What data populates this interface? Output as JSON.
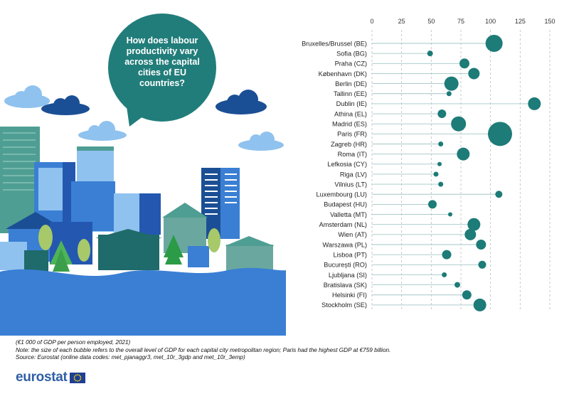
{
  "bubble": {
    "question": "How does labour productivity vary across the capital cities of EU countries?"
  },
  "notes": {
    "unit": "(€1 000 of GDP per person employed, 2021)",
    "note": "Note: the size of each bubble refers to the overall level of GDP for each capital city metropolitan region; Paris had the highest GDP at €759 billion.",
    "source": "Source: Eurostat (online data codes: met_pjanaggr3, met_10r_3gdp and met_10r_3emp)"
  },
  "logo": {
    "text": "eurostat"
  },
  "colors": {
    "dot": "#1d7b78",
    "stem": "#a3c7c6",
    "grid": "#bdbdbd",
    "bubble": "#217d7a",
    "water": "#3a7fd4",
    "cloud_light": "#8fc2ef",
    "cloud_dark": "#1b4f95",
    "logo": "#2f5fa6",
    "eu_flag": "#1f3f93",
    "eu_stars": "#ffdd00"
  },
  "chart_data": {
    "type": "scatter",
    "title": "",
    "xlabel": "",
    "ylabel": "",
    "xlim": [
      0,
      150
    ],
    "x_ticks": [
      0,
      25,
      50,
      75,
      100,
      125,
      150
    ],
    "grid": true,
    "categories": [
      "Bruxelles/Brussel (BE)",
      "Sofia (BG)",
      "Praha (CZ)",
      "København (DK)",
      "Berlin (DE)",
      "Tallinn (EE)",
      "Dublin (IE)",
      "Athina (EL)",
      "Madrid (ES)",
      "Paris (FR)",
      "Zagreb (HR)",
      "Roma (IT)",
      "Lefkosia (CY)",
      "Riga (LV)",
      "Vilnius (LT)",
      "Luxembourg (LU)",
      "Budapest (HU)",
      "Valletta (MT)",
      "Amsterdam (NL)",
      "Wien (AT)",
      "Warszawa (PL)",
      "Lisboa (PT)",
      "București (RO)",
      "Ljubljana (SI)",
      "Bratislava (SK)",
      "Helsinki (FI)",
      "Stockholm (SE)"
    ],
    "values": [
      103,
      49,
      78,
      86,
      67,
      65,
      137,
      59,
      73,
      108,
      58,
      77,
      57,
      54,
      58,
      107,
      51,
      66,
      86,
      83,
      92,
      63,
      93,
      61,
      72,
      80,
      91
    ],
    "bubble_size": [
      12,
      4,
      7,
      8,
      10,
      3.5,
      9,
      6,
      10.5,
      17,
      3.5,
      9,
      3,
      3.5,
      3.5,
      5,
      6,
      3,
      9,
      8,
      7,
      6.5,
      5.5,
      3.5,
      4,
      6.5,
      9
    ]
  }
}
